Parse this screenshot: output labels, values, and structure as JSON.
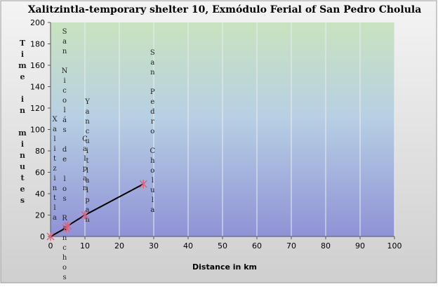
{
  "chart_data": {
    "type": "line",
    "title": "Xalitzintla-temporary shelter 10, Exmódulo  Ferial of San Pedro Cholula",
    "xlabel": "Distance in km",
    "ylabel": "Time in minutes",
    "x": [
      0,
      4.5,
      5,
      10,
      27
    ],
    "values": [
      0,
      8,
      10,
      20,
      49
    ],
    "point_labels": [
      "Xalitzintla",
      "San Nicolás de los Ranchos",
      "Yancuitlalpan",
      "Calpan",
      "San Pedro Cholula"
    ],
    "color": "#000000",
    "marker_color": "#e0607a",
    "xlim": [
      0,
      100
    ],
    "xticks": [
      0,
      10,
      20,
      30,
      40,
      50,
      60,
      70,
      80,
      90,
      100
    ],
    "ylim": [
      0,
      200
    ],
    "yticks": [
      0,
      20,
      40,
      60,
      80,
      100,
      120,
      140,
      160,
      180,
      200
    ],
    "grid": "x"
  }
}
